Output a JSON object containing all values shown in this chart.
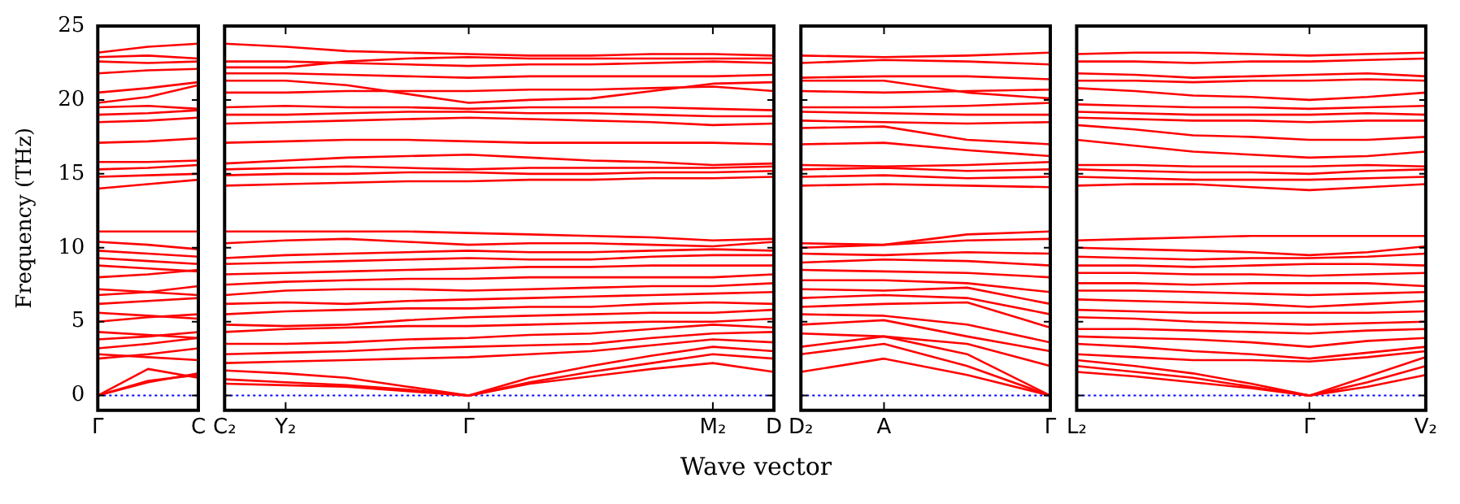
{
  "chart_data": [
    {
      "type": "line",
      "ylabel": "Frequency (THz)",
      "categories": [
        "Γ",
        null,
        "C"
      ],
      "ylim": [
        -1,
        25
      ],
      "yticks": [
        0,
        5,
        10,
        15,
        20,
        25
      ],
      "grid": false,
      "legend": false,
      "marker": "none",
      "line_style": "solid",
      "ref_lines": [
        {
          "axis": "y",
          "value": 0,
          "color": "#0000ff",
          "line_style": "dotted"
        }
      ],
      "series": [
        {
          "color": "#ff0000",
          "values": [
            0,
            1.8,
            1.2
          ]
        },
        {
          "color": "#ff0000",
          "values": [
            0,
            0.9,
            1.5
          ]
        },
        {
          "color": "#ff0000",
          "values": [
            0,
            1.0,
            1.4
          ]
        },
        {
          "color": "#ff0000",
          "values": [
            2.5,
            2.8,
            3.2
          ]
        },
        {
          "color": "#ff0000",
          "values": [
            2.8,
            2.6,
            2.4
          ]
        },
        {
          "color": "#ff0000",
          "values": [
            3.2,
            3.5,
            3.9
          ]
        },
        {
          "color": "#ff0000",
          "values": [
            3.8,
            4.0,
            4.3
          ]
        },
        {
          "color": "#ff0000",
          "values": [
            4.3,
            4.1,
            3.9
          ]
        },
        {
          "color": "#ff0000",
          "values": [
            5.0,
            5.3,
            5.5
          ]
        },
        {
          "color": "#ff0000",
          "values": [
            5.6,
            5.4,
            5.2
          ]
        },
        {
          "color": "#ff0000",
          "values": [
            6.2,
            6.4,
            6.6
          ]
        },
        {
          "color": "#ff0000",
          "values": [
            6.8,
            7.0,
            7.4
          ]
        },
        {
          "color": "#ff0000",
          "values": [
            7.2,
            7.0,
            6.8
          ]
        },
        {
          "color": "#ff0000",
          "values": [
            8.0,
            8.2,
            8.5
          ]
        },
        {
          "color": "#ff0000",
          "values": [
            8.8,
            8.6,
            8.4
          ]
        },
        {
          "color": "#ff0000",
          "values": [
            9.3,
            9.1,
            8.9
          ]
        },
        {
          "color": "#ff0000",
          "values": [
            9.8,
            9.6,
            9.4
          ]
        },
        {
          "color": "#ff0000",
          "values": [
            10.4,
            10.2,
            9.9
          ]
        },
        {
          "color": "#ff0000",
          "values": [
            11.1,
            11.1,
            11.1
          ]
        },
        {
          "color": "#ff0000",
          "values": [
            14.0,
            14.3,
            14.6
          ]
        },
        {
          "color": "#ff0000",
          "values": [
            14.8,
            14.9,
            15.0
          ]
        },
        {
          "color": "#ff0000",
          "values": [
            15.3,
            15.4,
            15.6
          ]
        },
        {
          "color": "#ff0000",
          "values": [
            15.8,
            15.8,
            15.9
          ]
        },
        {
          "color": "#ff0000",
          "values": [
            17.1,
            17.2,
            17.4
          ]
        },
        {
          "color": "#ff0000",
          "values": [
            18.5,
            18.6,
            18.8
          ]
        },
        {
          "color": "#ff0000",
          "values": [
            19.0,
            19.1,
            19.3
          ]
        },
        {
          "color": "#ff0000",
          "values": [
            19.5,
            19.6,
            19.4
          ]
        },
        {
          "color": "#ff0000",
          "values": [
            19.8,
            20.2,
            21.0
          ]
        },
        {
          "color": "#ff0000",
          "values": [
            20.5,
            20.8,
            21.2
          ]
        },
        {
          "color": "#ff0000",
          "values": [
            21.8,
            22.0,
            22.1
          ]
        },
        {
          "color": "#ff0000",
          "values": [
            22.6,
            22.5,
            22.6
          ]
        },
        {
          "color": "#ff0000",
          "values": [
            23.2,
            23.6,
            23.8
          ]
        },
        {
          "color": "#ff0000",
          "values": [
            22.9,
            23.0,
            22.8
          ]
        }
      ]
    },
    {
      "type": "line",
      "xlabel": "Wave vector",
      "categories": [
        "C₂",
        "Y₂",
        null,
        null,
        "Γ",
        null,
        null,
        null,
        "M₂",
        "D"
      ],
      "ylim": [
        -1,
        25
      ],
      "yticks": [
        0,
        5,
        10,
        15,
        20,
        25
      ],
      "tick_labels": "x",
      "grid": false,
      "legend": false,
      "marker": "none",
      "line_style": "solid",
      "ref_lines": [
        {
          "axis": "y",
          "value": 0,
          "color": "#0000ff",
          "line_style": "dotted"
        }
      ],
      "series": [
        {
          "color": "#ff0000",
          "values": [
            1.1,
            0.9,
            0.7,
            0.4,
            0,
            0.8,
            1.3,
            1.8,
            2.2,
            1.6
          ]
        },
        {
          "color": "#ff0000",
          "values": [
            0.8,
            0.7,
            0.6,
            0.3,
            0,
            0.9,
            1.6,
            2.2,
            2.8,
            2.5
          ]
        },
        {
          "color": "#ff0000",
          "values": [
            1.7,
            1.5,
            1.2,
            0.6,
            0,
            1.2,
            2.0,
            2.7,
            3.3,
            3.0
          ]
        },
        {
          "color": "#ff0000",
          "values": [
            2.2,
            2.3,
            2.4,
            2.5,
            2.6,
            2.8,
            3.0,
            3.4,
            3.8,
            3.6
          ]
        },
        {
          "color": "#ff0000",
          "values": [
            2.8,
            2.9,
            3.0,
            3.2,
            3.3,
            3.4,
            3.5,
            3.9,
            4.2,
            4.3
          ]
        },
        {
          "color": "#ff0000",
          "values": [
            3.5,
            3.5,
            3.6,
            3.8,
            3.9,
            4.1,
            4.2,
            4.5,
            4.8,
            4.6
          ]
        },
        {
          "color": "#ff0000",
          "values": [
            4.3,
            4.5,
            4.6,
            4.7,
            4.7,
            4.8,
            4.9,
            5.0,
            5.0,
            5.2
          ]
        },
        {
          "color": "#ff0000",
          "values": [
            4.8,
            4.7,
            4.8,
            5.1,
            5.3,
            5.4,
            5.5,
            5.6,
            5.6,
            5.8
          ]
        },
        {
          "color": "#ff0000",
          "values": [
            5.5,
            5.7,
            5.8,
            5.9,
            5.9,
            6.0,
            6.0,
            6.2,
            6.3,
            6.2
          ]
        },
        {
          "color": "#ff0000",
          "values": [
            6.2,
            6.3,
            6.2,
            6.4,
            6.5,
            6.6,
            6.7,
            6.8,
            6.9,
            7.0
          ]
        },
        {
          "color": "#ff0000",
          "values": [
            6.8,
            7.1,
            7.2,
            7.2,
            7.1,
            7.2,
            7.3,
            7.4,
            7.4,
            7.6
          ]
        },
        {
          "color": "#ff0000",
          "values": [
            7.5,
            7.7,
            7.8,
            7.9,
            7.9,
            8.0,
            8.0,
            8.0,
            8.0,
            8.2
          ]
        },
        {
          "color": "#ff0000",
          "values": [
            8.2,
            8.3,
            8.4,
            8.5,
            8.6,
            8.7,
            8.7,
            8.8,
            8.8,
            8.8
          ]
        },
        {
          "color": "#ff0000",
          "values": [
            8.9,
            9.0,
            9.1,
            9.2,
            9.3,
            9.2,
            9.2,
            9.4,
            9.5,
            9.5
          ]
        },
        {
          "color": "#ff0000",
          "values": [
            9.3,
            9.5,
            9.6,
            9.7,
            9.8,
            9.7,
            9.7,
            9.8,
            9.9,
            9.8
          ]
        },
        {
          "color": "#ff0000",
          "values": [
            10.3,
            10.5,
            10.6,
            10.4,
            10.2,
            10.3,
            10.3,
            10.2,
            10.1,
            10.4
          ]
        },
        {
          "color": "#ff0000",
          "values": [
            11.1,
            11.1,
            11.1,
            11.1,
            11.0,
            10.9,
            10.8,
            10.7,
            10.5,
            10.6
          ]
        },
        {
          "color": "#ff0000",
          "values": [
            14.2,
            14.3,
            14.4,
            14.5,
            14.5,
            14.6,
            14.6,
            14.7,
            14.7,
            14.8
          ]
        },
        {
          "color": "#ff0000",
          "values": [
            14.9,
            15.0,
            15.0,
            15.1,
            15.1,
            15.0,
            15.0,
            15.1,
            15.1,
            15.2
          ]
        },
        {
          "color": "#ff0000",
          "values": [
            15.3,
            15.4,
            15.5,
            15.4,
            15.3,
            15.4,
            15.4,
            15.4,
            15.4,
            15.5
          ]
        },
        {
          "color": "#ff0000",
          "values": [
            15.7,
            15.9,
            16.1,
            16.2,
            16.3,
            16.1,
            15.9,
            15.8,
            15.6,
            15.7
          ]
        },
        {
          "color": "#ff0000",
          "values": [
            17.1,
            17.2,
            17.3,
            17.3,
            17.2,
            17.1,
            17.1,
            17.1,
            17.1,
            17.0
          ]
        },
        {
          "color": "#ff0000",
          "values": [
            18.4,
            18.5,
            18.6,
            18.7,
            18.8,
            18.7,
            18.6,
            18.5,
            18.3,
            18.4
          ]
        },
        {
          "color": "#ff0000",
          "values": [
            19.0,
            19.0,
            19.1,
            19.2,
            19.2,
            19.1,
            19.1,
            19.0,
            18.9,
            18.9
          ]
        },
        {
          "color": "#ff0000",
          "values": [
            19.5,
            19.6,
            19.5,
            19.5,
            19.4,
            19.5,
            19.5,
            19.5,
            19.4,
            19.3
          ]
        },
        {
          "color": "#ff0000",
          "values": [
            20.5,
            20.5,
            20.6,
            20.6,
            20.6,
            20.7,
            20.7,
            20.8,
            20.9,
            20.6
          ]
        },
        {
          "color": "#ff0000",
          "values": [
            21.3,
            21.3,
            21.0,
            20.4,
            19.8,
            20.0,
            20.1,
            20.6,
            21.1,
            21.2
          ]
        },
        {
          "color": "#ff0000",
          "values": [
            21.8,
            21.8,
            21.7,
            21.6,
            21.5,
            21.6,
            21.6,
            21.6,
            21.6,
            21.7
          ]
        },
        {
          "color": "#ff0000",
          "values": [
            22.6,
            22.6,
            22.5,
            22.4,
            22.3,
            22.4,
            22.4,
            22.5,
            22.6,
            22.5
          ]
        },
        {
          "color": "#ff0000",
          "values": [
            23.8,
            23.6,
            23.3,
            23.2,
            23.1,
            23.0,
            23.0,
            23.1,
            23.1,
            23.0
          ]
        },
        {
          "color": "#ff0000",
          "values": [
            22.2,
            22.2,
            22.6,
            22.8,
            22.9,
            22.8,
            22.8,
            22.8,
            22.8,
            22.8
          ]
        }
      ]
    },
    {
      "type": "line",
      "categories": [
        "D₂",
        "A",
        null,
        "Γ"
      ],
      "ylim": [
        -1,
        25
      ],
      "yticks": [
        0,
        5,
        10,
        15,
        20,
        25
      ],
      "tick_labels": "x",
      "grid": false,
      "legend": false,
      "marker": "none",
      "line_style": "solid",
      "ref_lines": [
        {
          "axis": "y",
          "value": 0,
          "color": "#0000ff",
          "line_style": "dotted"
        }
      ],
      "series": [
        {
          "color": "#ff0000",
          "values": [
            1.6,
            2.5,
            1.4,
            0
          ]
        },
        {
          "color": "#ff0000",
          "values": [
            2.8,
            3.5,
            2.0,
            0
          ]
        },
        {
          "color": "#ff0000",
          "values": [
            3.3,
            4.0,
            2.8,
            0
          ]
        },
        {
          "color": "#ff0000",
          "values": [
            4.2,
            4.0,
            3.5,
            2.0
          ]
        },
        {
          "color": "#ff0000",
          "values": [
            4.8,
            5.1,
            4.0,
            3.0
          ]
        },
        {
          "color": "#ff0000",
          "values": [
            5.5,
            5.4,
            4.8,
            3.6
          ]
        },
        {
          "color": "#ff0000",
          "values": [
            6.0,
            6.2,
            6.3,
            4.6
          ]
        },
        {
          "color": "#ff0000",
          "values": [
            6.6,
            6.8,
            6.6,
            5.5
          ]
        },
        {
          "color": "#ff0000",
          "values": [
            7.2,
            7.1,
            7.3,
            6.2
          ]
        },
        {
          "color": "#ff0000",
          "values": [
            7.8,
            7.8,
            7.6,
            7.0
          ]
        },
        {
          "color": "#ff0000",
          "values": [
            8.5,
            8.4,
            8.3,
            8.0
          ]
        },
        {
          "color": "#ff0000",
          "values": [
            9.0,
            9.2,
            9.1,
            8.8
          ]
        },
        {
          "color": "#ff0000",
          "values": [
            9.6,
            9.5,
            9.7,
            9.6
          ]
        },
        {
          "color": "#ff0000",
          "values": [
            10.3,
            10.2,
            10.5,
            10.6
          ]
        },
        {
          "color": "#ff0000",
          "values": [
            10.0,
            10.2,
            10.9,
            11.1
          ]
        },
        {
          "color": "#ff0000",
          "values": [
            14.2,
            14.3,
            14.2,
            14.1
          ]
        },
        {
          "color": "#ff0000",
          "values": [
            14.8,
            14.9,
            14.7,
            14.8
          ]
        },
        {
          "color": "#ff0000",
          "values": [
            15.3,
            15.4,
            15.2,
            15.3
          ]
        },
        {
          "color": "#ff0000",
          "values": [
            15.6,
            15.5,
            15.6,
            15.8
          ]
        },
        {
          "color": "#ff0000",
          "values": [
            17.0,
            17.1,
            16.6,
            16.2
          ]
        },
        {
          "color": "#ff0000",
          "values": [
            18.1,
            18.2,
            17.3,
            17.0
          ]
        },
        {
          "color": "#ff0000",
          "values": [
            18.6,
            18.5,
            18.4,
            18.5
          ]
        },
        {
          "color": "#ff0000",
          "values": [
            19.2,
            19.1,
            19.0,
            19.0
          ]
        },
        {
          "color": "#ff0000",
          "values": [
            19.5,
            19.5,
            19.6,
            19.8
          ]
        },
        {
          "color": "#ff0000",
          "values": [
            20.6,
            20.5,
            20.6,
            20.7
          ]
        },
        {
          "color": "#ff0000",
          "values": [
            21.3,
            21.3,
            20.5,
            20.1
          ]
        },
        {
          "color": "#ff0000",
          "values": [
            21.5,
            21.6,
            21.6,
            21.4
          ]
        },
        {
          "color": "#ff0000",
          "values": [
            22.5,
            22.7,
            22.6,
            22.4
          ]
        },
        {
          "color": "#ff0000",
          "values": [
            23.0,
            22.9,
            23.0,
            23.2
          ]
        }
      ]
    },
    {
      "type": "line",
      "categories": [
        "L₂",
        null,
        null,
        null,
        "Γ",
        null,
        "V₂"
      ],
      "ylim": [
        -1,
        25
      ],
      "yticks": [
        0,
        5,
        10,
        15,
        20,
        25
      ],
      "tick_labels": "x",
      "grid": false,
      "legend": false,
      "marker": "none",
      "line_style": "solid",
      "ref_lines": [
        {
          "axis": "y",
          "value": 0,
          "color": "#0000ff",
          "line_style": "dotted"
        }
      ],
      "series": [
        {
          "color": "#ff0000",
          "values": [
            1.6,
            1.3,
            0.9,
            0.5,
            0,
            0.6,
            1.4
          ]
        },
        {
          "color": "#ff0000",
          "values": [
            2.0,
            1.6,
            1.2,
            0.6,
            0,
            0.9,
            2.0
          ]
        },
        {
          "color": "#ff0000",
          "values": [
            2.4,
            2.0,
            1.5,
            0.8,
            0,
            1.3,
            2.6
          ]
        },
        {
          "color": "#ff0000",
          "values": [
            2.8,
            2.6,
            2.4,
            2.4,
            2.3,
            2.6,
            3.0
          ]
        },
        {
          "color": "#ff0000",
          "values": [
            3.5,
            3.3,
            3.0,
            2.8,
            2.5,
            2.9,
            3.3
          ]
        },
        {
          "color": "#ff0000",
          "values": [
            4.0,
            3.9,
            3.8,
            3.6,
            3.3,
            3.7,
            3.9
          ]
        },
        {
          "color": "#ff0000",
          "values": [
            4.5,
            4.5,
            4.4,
            4.3,
            4.2,
            4.4,
            4.5
          ]
        },
        {
          "color": "#ff0000",
          "values": [
            5.3,
            5.2,
            5.0,
            4.9,
            4.8,
            4.9,
            5.0
          ]
        },
        {
          "color": "#ff0000",
          "values": [
            5.8,
            5.7,
            5.6,
            5.6,
            5.6,
            5.6,
            5.7
          ]
        },
        {
          "color": "#ff0000",
          "values": [
            6.5,
            6.4,
            6.3,
            6.2,
            6.0,
            6.2,
            6.4
          ]
        },
        {
          "color": "#ff0000",
          "values": [
            7.1,
            7.1,
            7.0,
            6.9,
            6.8,
            6.9,
            7.0
          ]
        },
        {
          "color": "#ff0000",
          "values": [
            7.6,
            7.6,
            7.5,
            7.6,
            7.6,
            7.6,
            7.4
          ]
        },
        {
          "color": "#ff0000",
          "values": [
            8.3,
            8.3,
            8.2,
            8.2,
            8.1,
            8.2,
            8.3
          ]
        },
        {
          "color": "#ff0000",
          "values": [
            8.8,
            8.8,
            8.7,
            8.8,
            8.9,
            8.9,
            8.8
          ]
        },
        {
          "color": "#ff0000",
          "values": [
            9.4,
            9.3,
            9.2,
            9.3,
            9.3,
            9.4,
            9.6
          ]
        },
        {
          "color": "#ff0000",
          "values": [
            10.0,
            9.9,
            9.8,
            9.7,
            9.5,
            9.7,
            10.1
          ]
        },
        {
          "color": "#ff0000",
          "values": [
            10.5,
            10.6,
            10.7,
            10.8,
            10.8,
            10.8,
            10.8
          ]
        },
        {
          "color": "#ff0000",
          "values": [
            14.2,
            14.3,
            14.3,
            14.1,
            13.9,
            14.1,
            14.3
          ]
        },
        {
          "color": "#ff0000",
          "values": [
            14.8,
            14.7,
            14.6,
            14.6,
            14.6,
            14.7,
            14.8
          ]
        },
        {
          "color": "#ff0000",
          "values": [
            15.3,
            15.2,
            15.1,
            15.1,
            15.0,
            15.2,
            15.3
          ]
        },
        {
          "color": "#ff0000",
          "values": [
            15.6,
            15.6,
            15.5,
            15.5,
            15.5,
            15.6,
            15.5
          ]
        },
        {
          "color": "#ff0000",
          "values": [
            17.3,
            16.9,
            16.5,
            16.3,
            16.1,
            16.2,
            16.5
          ]
        },
        {
          "color": "#ff0000",
          "values": [
            18.3,
            18.0,
            17.6,
            17.5,
            17.3,
            17.3,
            17.5
          ]
        },
        {
          "color": "#ff0000",
          "values": [
            18.8,
            18.7,
            18.6,
            18.6,
            18.5,
            18.6,
            18.6
          ]
        },
        {
          "color": "#ff0000",
          "values": [
            19.2,
            19.1,
            19.0,
            19.0,
            19.0,
            19.1,
            19.0
          ]
        },
        {
          "color": "#ff0000",
          "values": [
            19.7,
            19.6,
            19.5,
            19.5,
            19.4,
            19.5,
            19.6
          ]
        },
        {
          "color": "#ff0000",
          "values": [
            20.8,
            20.6,
            20.3,
            20.2,
            20.0,
            20.2,
            20.5
          ]
        },
        {
          "color": "#ff0000",
          "values": [
            21.3,
            21.3,
            21.2,
            21.3,
            21.3,
            21.4,
            21.3
          ]
        },
        {
          "color": "#ff0000",
          "values": [
            21.8,
            21.7,
            21.5,
            21.6,
            21.7,
            21.8,
            21.6
          ]
        },
        {
          "color": "#ff0000",
          "values": [
            22.6,
            22.6,
            22.5,
            22.6,
            22.6,
            22.7,
            22.8
          ]
        },
        {
          "color": "#ff0000",
          "values": [
            23.1,
            23.2,
            23.2,
            23.1,
            23.0,
            23.1,
            23.2
          ]
        }
      ]
    }
  ]
}
